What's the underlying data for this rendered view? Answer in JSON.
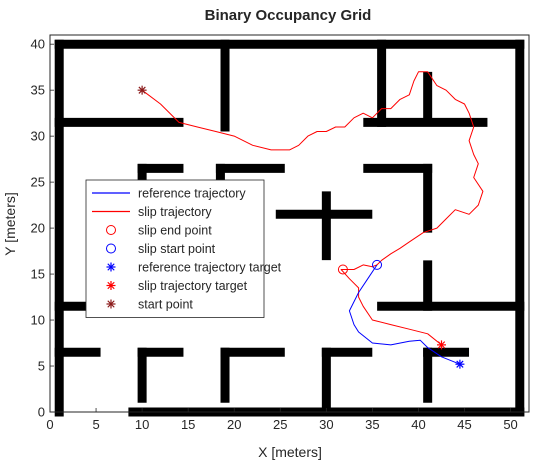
{
  "chart_data": {
    "type": "line",
    "title": "Binary Occupancy Grid",
    "xlabel": "X [meters]",
    "ylabel": "Y [meters]",
    "xlim": [
      0,
      52
    ],
    "ylim": [
      0,
      41
    ],
    "xticks": [
      0,
      5,
      10,
      15,
      20,
      25,
      30,
      35,
      40,
      45,
      50
    ],
    "yticks": [
      0,
      5,
      10,
      15,
      20,
      25,
      30,
      35,
      40
    ],
    "grid": false,
    "legend_position": "center-left",
    "occupancy_walls": [
      [
        [
          1,
          0
        ],
        [
          1,
          40
        ]
      ],
      [
        [
          1,
          40
        ],
        [
          51,
          40
        ]
      ],
      [
        [
          51,
          40
        ],
        [
          51,
          0
        ]
      ],
      [
        [
          9,
          0
        ],
        [
          51,
          0
        ]
      ],
      [
        [
          19,
          40
        ],
        [
          19,
          31
        ]
      ],
      [
        [
          1,
          31.5
        ],
        [
          14,
          31.5
        ]
      ],
      [
        [
          36,
          40
        ],
        [
          36,
          31.5
        ]
      ],
      [
        [
          41,
          36.5
        ],
        [
          41,
          32
        ]
      ],
      [
        [
          34.5,
          31.5
        ],
        [
          47,
          31.5
        ]
      ],
      [
        [
          10,
          26.5
        ],
        [
          14,
          26.5
        ]
      ],
      [
        [
          10,
          26.5
        ],
        [
          10,
          23.5
        ]
      ],
      [
        [
          18.5,
          26.5
        ],
        [
          18.5,
          22
        ]
      ],
      [
        [
          18.5,
          26.5
        ],
        [
          25,
          26.5
        ]
      ],
      [
        [
          34.5,
          26.5
        ],
        [
          41,
          26.5
        ]
      ],
      [
        [
          41,
          26.5
        ],
        [
          41,
          20
        ]
      ],
      [
        [
          30,
          23.5
        ],
        [
          30,
          17
        ]
      ],
      [
        [
          25,
          21.5
        ],
        [
          34.5,
          21.5
        ]
      ],
      [
        [
          41,
          16
        ],
        [
          41,
          11.5
        ]
      ],
      [
        [
          1,
          11.5
        ],
        [
          10,
          11.5
        ]
      ],
      [
        [
          36,
          11.5
        ],
        [
          51,
          11.5
        ]
      ],
      [
        [
          1,
          6.5
        ],
        [
          5,
          6.5
        ]
      ],
      [
        [
          10,
          6.5
        ],
        [
          14,
          6.5
        ]
      ],
      [
        [
          10,
          6.5
        ],
        [
          10,
          1.5
        ]
      ],
      [
        [
          19,
          6.5
        ],
        [
          25,
          6.5
        ]
      ],
      [
        [
          19,
          6.5
        ],
        [
          19,
          1.5
        ]
      ],
      [
        [
          30,
          6.5
        ],
        [
          30,
          0
        ]
      ],
      [
        [
          30,
          6.5
        ],
        [
          34.5,
          6.5
        ]
      ],
      [
        [
          41,
          6.5
        ],
        [
          41,
          1.5
        ]
      ],
      [
        [
          41,
          6.5
        ],
        [
          45,
          6.5
        ]
      ]
    ],
    "series": [
      {
        "name": "reference trajectory",
        "color": "#0000ff",
        "x": [
          35.5,
          34.5,
          33.5,
          32.5,
          33,
          33.5,
          35,
          37,
          39,
          40.2,
          41,
          42.5,
          44.5
        ],
        "y": [
          16,
          14.5,
          13,
          11,
          9.5,
          8.7,
          7.5,
          7.3,
          7.7,
          7.8,
          7,
          6,
          5.2
        ]
      },
      {
        "name": "slip trajectory",
        "color": "#ff0000",
        "x": [
          10,
          12,
          14,
          16,
          18,
          20,
          22,
          24,
          26,
          27,
          28,
          29,
          30,
          31,
          32,
          33,
          34,
          35,
          36,
          37,
          38,
          39,
          39.5,
          40,
          41,
          42,
          43,
          44,
          45,
          45.5,
          46,
          45.5,
          46,
          46.5,
          46,
          47,
          46.5,
          45.5,
          44,
          43,
          42,
          40.5,
          39,
          38,
          37,
          36,
          35.5,
          35,
          34,
          33,
          32,
          31.6,
          32.5,
          33.5,
          33.5,
          34,
          35,
          37,
          39,
          41,
          42.5
        ],
        "y": [
          35,
          33.5,
          31.5,
          31,
          30.5,
          30,
          29,
          28.5,
          28.5,
          29,
          30,
          30.5,
          30.5,
          31,
          31,
          32,
          32.5,
          32,
          33,
          33,
          34,
          34.5,
          36,
          37,
          37,
          35.5,
          35,
          34,
          33.5,
          32.5,
          31,
          29.5,
          28,
          27,
          25.5,
          24,
          22.5,
          21.5,
          22,
          21,
          20,
          19.5,
          18.5,
          17.8,
          17.2,
          16.5,
          16,
          15.8,
          16,
          15.5,
          15.5,
          15.5,
          14.5,
          13.5,
          12.5,
          11.5,
          10,
          9.5,
          9,
          8.5,
          7.3
        ]
      }
    ],
    "markers": [
      {
        "name": "slip end point",
        "symbol": "circle",
        "color": "#ff0000",
        "x": 31.8,
        "y": 15.5
      },
      {
        "name": "slip start point",
        "symbol": "circle",
        "color": "#0000ff",
        "x": 35.5,
        "y": 16
      },
      {
        "name": "reference trajectory target",
        "symbol": "star",
        "color": "#0000ff",
        "x": 44.5,
        "y": 5.2
      },
      {
        "name": "slip trajectory target",
        "symbol": "star",
        "color": "#ff0000",
        "x": 42.5,
        "y": 7.3
      },
      {
        "name": "start point",
        "symbol": "star",
        "color": "#8b1a1a",
        "x": 10,
        "y": 35
      }
    ],
    "legend": [
      {
        "label": "reference trajectory",
        "kind": "line",
        "color": "#0000ff"
      },
      {
        "label": "slip trajectory",
        "kind": "line",
        "color": "#ff0000"
      },
      {
        "label": "slip end point",
        "kind": "circle",
        "color": "#ff0000"
      },
      {
        "label": "slip start point",
        "kind": "circle",
        "color": "#0000ff"
      },
      {
        "label": "reference trajectory target",
        "kind": "star",
        "color": "#0000ff"
      },
      {
        "label": "slip trajectory target",
        "kind": "star",
        "color": "#ff0000"
      },
      {
        "label": "start point",
        "kind": "star",
        "color": "#8b1a1a"
      }
    ]
  }
}
